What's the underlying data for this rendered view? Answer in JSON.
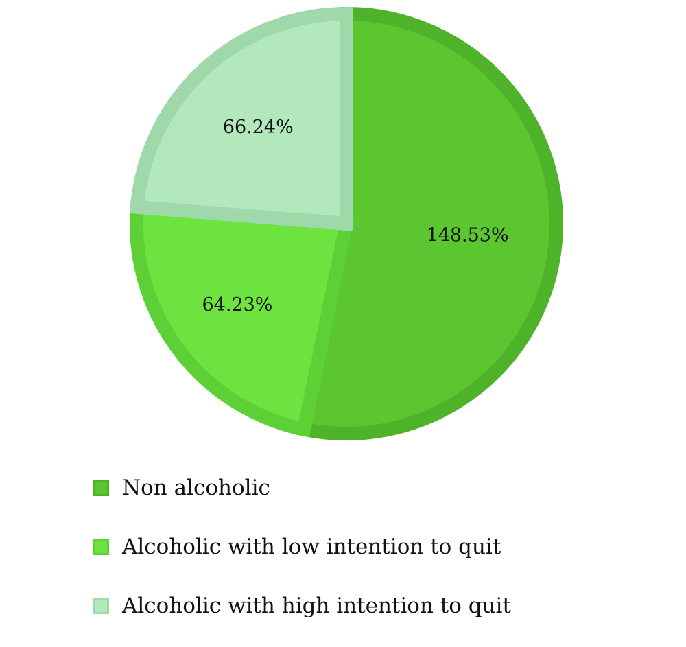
{
  "chart_data": {
    "type": "pie",
    "categories": [
      "Non alcoholic",
      "Alcoholic with low intention to quit",
      "Alcoholic with high intention to quit"
    ],
    "values": [
      148.53,
      64.23,
      66.24
    ],
    "value_labels": [
      "148.53%",
      "64.23%",
      "66.24%"
    ],
    "colors": [
      "#5cc630",
      "#6ce33f",
      "#b3e8bd"
    ],
    "border_colors": [
      "#4eb328",
      "#5dd036",
      "#9fd8a9"
    ],
    "legend": {
      "placement": "bottom",
      "entries": [
        "Non alcoholic",
        "Alcoholic with low intention to quit",
        "Alcoholic with high intention to quit"
      ]
    }
  }
}
